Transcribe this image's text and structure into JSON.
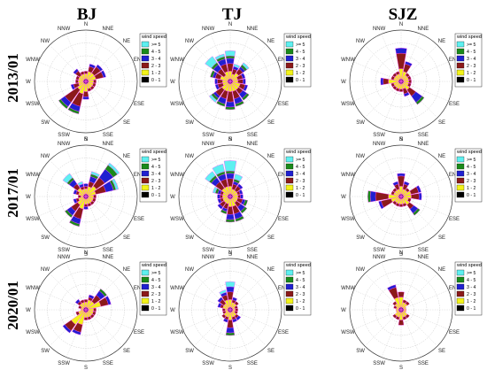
{
  "columns": [
    "BJ",
    "TJ",
    "SJZ"
  ],
  "rows": [
    "2013/01",
    "2017/01",
    "2020/01"
  ],
  "directions": [
    "N",
    "NNE",
    "NE",
    "ENE",
    "E",
    "ESE",
    "SE",
    "SSE",
    "S",
    "SSW",
    "SW",
    "WSW",
    "W",
    "WNW",
    "NW",
    "NNW"
  ],
  "legend": {
    "title": "wind speed",
    "bins": [
      {
        "label": ">= 5",
        "color": "#5ef0f0"
      },
      {
        "label": "4 - 5",
        "color": "#1a8a1a"
      },
      {
        "label": "3 - 4",
        "color": "#2020d0"
      },
      {
        "label": "2 - 3",
        "color": "#8b1a1a"
      },
      {
        "label": "1 - 2",
        "color": "#f2f21a"
      },
      {
        "label": "0 - 1",
        "color": "#000000"
      }
    ]
  },
  "chart_data": [
    {
      "type": "wind-rose",
      "city": "BJ",
      "period": "2013/01",
      "rmax": 20,
      "series": [
        {
          "name": "0 - 1",
          "values": [
            1,
            1,
            1,
            1,
            1,
            1,
            1,
            1,
            1,
            1,
            1,
            1,
            1,
            1,
            1,
            1
          ]
        },
        {
          "name": "1 - 2",
          "values": [
            2,
            3,
            3,
            3,
            2,
            2,
            2,
            2,
            3,
            4,
            3,
            2,
            2,
            2,
            2,
            2
          ]
        },
        {
          "name": "2 - 3",
          "values": [
            1,
            2,
            3,
            3,
            1,
            1,
            1,
            1,
            2,
            5,
            6,
            2,
            1,
            1,
            2,
            1
          ]
        },
        {
          "name": "3 - 4",
          "values": [
            0,
            1,
            1,
            1,
            0,
            0,
            0,
            0,
            1,
            2,
            2,
            1,
            0,
            0,
            1,
            0
          ]
        },
        {
          "name": "4 - 5",
          "values": [
            0,
            0,
            0,
            0,
            0,
            0,
            0,
            0,
            0,
            1,
            1,
            0,
            0,
            0,
            0,
            0
          ]
        },
        {
          "name": ">= 5",
          "values": [
            0,
            0,
            0,
            0,
            0,
            0,
            0,
            0,
            0,
            0,
            0,
            0,
            0,
            0,
            0,
            0
          ]
        }
      ]
    },
    {
      "type": "wind-rose",
      "city": "TJ",
      "period": "2013/01",
      "rmax": 20,
      "series": [
        {
          "name": "0 - 1",
          "values": [
            1,
            1,
            1,
            1,
            1,
            1,
            1,
            1,
            1,
            1,
            1,
            1,
            1,
            1,
            1,
            1
          ]
        },
        {
          "name": "1 - 2",
          "values": [
            3,
            2,
            3,
            2,
            2,
            3,
            3,
            3,
            3,
            3,
            3,
            2,
            2,
            3,
            2,
            3
          ]
        },
        {
          "name": "2 - 3",
          "values": [
            3,
            2,
            2,
            2,
            2,
            2,
            2,
            3,
            4,
            3,
            3,
            2,
            2,
            2,
            3,
            3
          ]
        },
        {
          "name": "3 - 4",
          "values": [
            2,
            1,
            1,
            1,
            1,
            1,
            2,
            2,
            2,
            2,
            1,
            1,
            1,
            1,
            2,
            2
          ]
        },
        {
          "name": "4 - 5",
          "values": [
            1,
            0,
            1,
            0,
            0,
            0,
            1,
            1,
            1,
            1,
            1,
            0,
            0,
            1,
            1,
            1
          ]
        },
        {
          "name": ">= 5",
          "values": [
            2,
            1,
            1,
            0,
            0,
            0,
            0,
            0,
            0,
            0,
            1,
            0,
            0,
            0,
            3,
            1
          ]
        }
      ]
    },
    {
      "type": "wind-rose",
      "city": "SJZ",
      "period": "2013/01",
      "rmax": 20,
      "series": [
        {
          "name": "0 - 1",
          "values": [
            1,
            1,
            1,
            1,
            1,
            1,
            1,
            1,
            1,
            1,
            1,
            1,
            1,
            1,
            1,
            1
          ]
        },
        {
          "name": "1 - 2",
          "values": [
            4,
            3,
            2,
            2,
            2,
            2,
            3,
            2,
            2,
            2,
            2,
            2,
            4,
            2,
            2,
            2
          ]
        },
        {
          "name": "2 - 3",
          "values": [
            6,
            3,
            1,
            1,
            1,
            1,
            3,
            2,
            1,
            1,
            1,
            1,
            2,
            1,
            1,
            1
          ]
        },
        {
          "name": "3 - 4",
          "values": [
            2,
            1,
            0,
            0,
            0,
            0,
            3,
            1,
            0,
            0,
            0,
            0,
            1,
            0,
            0,
            0
          ]
        },
        {
          "name": "4 - 5",
          "values": [
            0,
            0,
            0,
            0,
            0,
            0,
            1,
            0,
            0,
            0,
            0,
            0,
            0,
            0,
            0,
            0
          ]
        },
        {
          "name": ">= 5",
          "values": [
            0,
            0,
            0,
            0,
            0,
            0,
            0,
            0,
            0,
            0,
            0,
            0,
            0,
            0,
            0,
            0
          ]
        }
      ]
    },
    {
      "type": "wind-rose",
      "city": "BJ",
      "period": "2017/01",
      "rmax": 20,
      "series": [
        {
          "name": "0 - 1",
          "values": [
            1,
            1,
            1,
            1,
            1,
            1,
            1,
            1,
            1,
            1,
            1,
            1,
            1,
            1,
            1,
            1
          ]
        },
        {
          "name": "1 - 2",
          "values": [
            2,
            3,
            4,
            3,
            2,
            2,
            2,
            2,
            2,
            4,
            3,
            2,
            1,
            2,
            3,
            2
          ]
        },
        {
          "name": "2 - 3",
          "values": [
            1,
            2,
            4,
            4,
            1,
            1,
            1,
            1,
            1,
            4,
            3,
            1,
            1,
            1,
            2,
            1
          ]
        },
        {
          "name": "3 - 4",
          "values": [
            1,
            2,
            4,
            3,
            0,
            0,
            0,
            0,
            1,
            2,
            2,
            1,
            0,
            1,
            2,
            1
          ]
        },
        {
          "name": "4 - 5",
          "values": [
            0,
            1,
            2,
            1,
            0,
            0,
            0,
            0,
            0,
            1,
            1,
            0,
            0,
            0,
            1,
            0
          ]
        },
        {
          "name": ">= 5",
          "values": [
            0,
            1,
            1,
            1,
            0,
            0,
            0,
            0,
            0,
            0,
            0,
            0,
            0,
            0,
            2,
            1
          ]
        }
      ]
    },
    {
      "type": "wind-rose",
      "city": "TJ",
      "period": "2017/01",
      "rmax": 20,
      "series": [
        {
          "name": "0 - 1",
          "values": [
            1,
            1,
            1,
            1,
            1,
            1,
            1,
            1,
            1,
            1,
            1,
            1,
            1,
            1,
            1,
            1
          ]
        },
        {
          "name": "1 - 2",
          "values": [
            3,
            2,
            2,
            2,
            2,
            2,
            2,
            3,
            3,
            2,
            2,
            2,
            2,
            2,
            3,
            3
          ]
        },
        {
          "name": "2 - 3",
          "values": [
            3,
            2,
            2,
            1,
            1,
            2,
            2,
            3,
            3,
            2,
            2,
            1,
            1,
            1,
            3,
            3
          ]
        },
        {
          "name": "3 - 4",
          "values": [
            2,
            1,
            1,
            1,
            1,
            1,
            2,
            2,
            2,
            1,
            1,
            1,
            1,
            1,
            2,
            2
          ]
        },
        {
          "name": "4 - 5",
          "values": [
            1,
            1,
            0,
            0,
            0,
            1,
            1,
            1,
            1,
            1,
            0,
            0,
            0,
            1,
            1,
            1
          ]
        },
        {
          "name": ">= 5",
          "values": [
            4,
            2,
            0,
            0,
            0,
            0,
            0,
            0,
            0,
            0,
            0,
            0,
            0,
            1,
            2,
            3
          ]
        }
      ]
    },
    {
      "type": "wind-rose",
      "city": "SJZ",
      "period": "2017/01",
      "rmax": 20,
      "series": [
        {
          "name": "0 - 1",
          "values": [
            1,
            1,
            1,
            1,
            1,
            1,
            1,
            1,
            1,
            1,
            1,
            1,
            1,
            1,
            1,
            1
          ]
        },
        {
          "name": "1 - 2",
          "values": [
            3,
            2,
            2,
            3,
            3,
            2,
            3,
            2,
            2,
            2,
            2,
            3,
            4,
            2,
            2,
            2
          ]
        },
        {
          "name": "2 - 3",
          "values": [
            4,
            2,
            1,
            3,
            3,
            1,
            2,
            1,
            1,
            1,
            1,
            4,
            5,
            1,
            1,
            2
          ]
        },
        {
          "name": "3 - 4",
          "values": [
            1,
            1,
            0,
            1,
            1,
            0,
            2,
            0,
            0,
            0,
            0,
            1,
            2,
            0,
            0,
            1
          ]
        },
        {
          "name": "4 - 5",
          "values": [
            0,
            0,
            0,
            0,
            0,
            0,
            1,
            0,
            0,
            0,
            0,
            0,
            1,
            0,
            0,
            0
          ]
        },
        {
          "name": ">= 5",
          "values": [
            0,
            0,
            0,
            0,
            0,
            0,
            0,
            0,
            0,
            0,
            0,
            0,
            0,
            0,
            0,
            0
          ]
        }
      ]
    },
    {
      "type": "wind-rose",
      "city": "BJ",
      "period": "2020/01",
      "rmax": 20,
      "series": [
        {
          "name": "0 - 1",
          "values": [
            1,
            1,
            1,
            1,
            1,
            1,
            1,
            1,
            1,
            1,
            1,
            1,
            1,
            1,
            1,
            1
          ]
        },
        {
          "name": "1 - 2",
          "values": [
            2,
            3,
            3,
            5,
            2,
            2,
            2,
            2,
            2,
            5,
            6,
            2,
            1,
            1,
            2,
            2
          ]
        },
        {
          "name": "2 - 3",
          "values": [
            1,
            1,
            3,
            3,
            1,
            1,
            1,
            1,
            1,
            3,
            3,
            1,
            0,
            1,
            1,
            1
          ]
        },
        {
          "name": "3 - 4",
          "values": [
            0,
            1,
            2,
            1,
            0,
            0,
            0,
            0,
            0,
            1,
            1,
            0,
            0,
            0,
            1,
            0
          ]
        },
        {
          "name": "4 - 5",
          "values": [
            0,
            0,
            1,
            0,
            0,
            0,
            0,
            0,
            0,
            0,
            0,
            0,
            0,
            0,
            0,
            0
          ]
        },
        {
          "name": ">= 5",
          "values": [
            0,
            0,
            0,
            0,
            0,
            0,
            0,
            0,
            0,
            0,
            0,
            0,
            0,
            0,
            0,
            0
          ]
        }
      ]
    },
    {
      "type": "wind-rose",
      "city": "TJ",
      "period": "2020/01",
      "rmax": 20,
      "series": [
        {
          "name": "0 - 1",
          "values": [
            1,
            1,
            1,
            1,
            1,
            1,
            1,
            1,
            1,
            1,
            1,
            1,
            1,
            1,
            1,
            1
          ]
        },
        {
          "name": "1 - 2",
          "values": [
            3,
            2,
            2,
            1,
            1,
            1,
            2,
            2,
            3,
            2,
            2,
            1,
            1,
            2,
            2,
            3
          ]
        },
        {
          "name": "2 - 3",
          "values": [
            3,
            1,
            1,
            1,
            1,
            1,
            1,
            1,
            3,
            1,
            1,
            1,
            1,
            1,
            2,
            2
          ]
        },
        {
          "name": "3 - 4",
          "values": [
            2,
            1,
            0,
            0,
            0,
            0,
            1,
            1,
            2,
            1,
            0,
            0,
            0,
            1,
            1,
            1
          ]
        },
        {
          "name": "4 - 5",
          "values": [
            0,
            0,
            0,
            0,
            0,
            0,
            0,
            0,
            1,
            0,
            0,
            0,
            0,
            0,
            0,
            0
          ]
        },
        {
          "name": ">= 5",
          "values": [
            2,
            0,
            0,
            0,
            0,
            0,
            0,
            0,
            0,
            0,
            0,
            0,
            0,
            0,
            0,
            1
          ]
        }
      ]
    },
    {
      "type": "wind-rose",
      "city": "SJZ",
      "period": "2020/01",
      "rmax": 20,
      "series": [
        {
          "name": "0 - 1",
          "values": [
            1,
            1,
            1,
            1,
            1,
            1,
            1,
            1,
            1,
            1,
            1,
            1,
            1,
            1,
            1,
            1
          ]
        },
        {
          "name": "1 - 2",
          "values": [
            4,
            2,
            2,
            1,
            1,
            1,
            2,
            2,
            3,
            2,
            2,
            1,
            1,
            1,
            2,
            4
          ]
        },
        {
          "name": "2 - 3",
          "values": [
            2,
            1,
            1,
            0,
            0,
            0,
            1,
            1,
            2,
            1,
            1,
            0,
            0,
            1,
            1,
            4
          ]
        },
        {
          "name": "3 - 4",
          "values": [
            0,
            0,
            0,
            0,
            0,
            0,
            0,
            0,
            0,
            0,
            0,
            0,
            0,
            0,
            0,
            1
          ]
        },
        {
          "name": "4 - 5",
          "values": [
            0,
            0,
            0,
            0,
            0,
            0,
            0,
            0,
            0,
            0,
            0,
            0,
            0,
            0,
            0,
            0
          ]
        },
        {
          "name": ">= 5",
          "values": [
            0,
            0,
            0,
            0,
            0,
            0,
            0,
            0,
            0,
            0,
            0,
            0,
            0,
            0,
            0,
            0
          ]
        }
      ]
    }
  ]
}
